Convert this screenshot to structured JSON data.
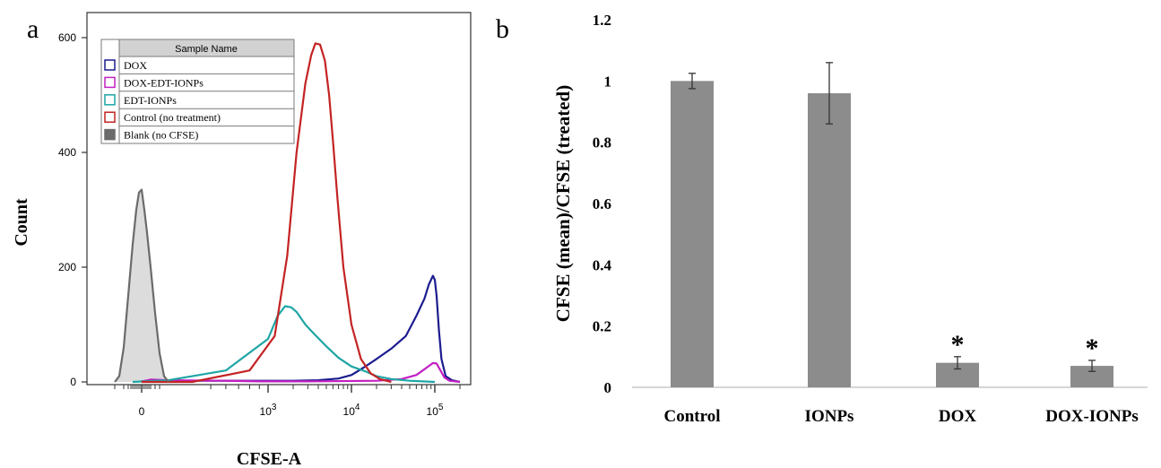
{
  "chart_data": [
    {
      "type": "line",
      "panel_label": "a",
      "xlabel": "CFSE-A",
      "ylabel": "Count",
      "ylim": [
        0,
        620
      ],
      "y_ticks": [
        0,
        200,
        400,
        600
      ],
      "x_tick_labels": [
        {
          "value": "0",
          "base": "",
          "exp": ""
        },
        {
          "value": "1000",
          "base": "10",
          "exp": "3"
        },
        {
          "value": "10000",
          "base": "10",
          "exp": "4"
        },
        {
          "value": "100000",
          "base": "10",
          "exp": "5"
        }
      ],
      "legend": {
        "header": "Sample Name",
        "entries": [
          "DOX",
          "DOX-EDT-IONPs",
          "EDT-IONPs",
          "Control (no treatment)",
          "Blank (no CFSE)"
        ]
      },
      "series": [
        {
          "name": "DOX",
          "color": "#1c1c8f",
          "filled": false,
          "x": [
            0,
            300,
            1000,
            2000,
            4000,
            7000,
            10000,
            14000,
            20000,
            30000,
            45000,
            60000,
            75000,
            85000,
            95000,
            100000,
            105000,
            112000,
            120000,
            135000,
            160000,
            200000
          ],
          "y": [
            1,
            2,
            2,
            2,
            3,
            6,
            12,
            25,
            40,
            58,
            80,
            115,
            145,
            170,
            185,
            178,
            150,
            90,
            40,
            10,
            3,
            0
          ]
        },
        {
          "name": "DOX-EDT-IONPs",
          "color": "#c21fc2",
          "filled": false,
          "x": [
            0,
            100,
            300,
            600,
            900,
            3000,
            20000,
            40000,
            60000,
            80000,
            95000,
            105000,
            115000,
            130000,
            150000,
            200000
          ],
          "y": [
            1,
            4,
            3,
            2,
            1,
            1,
            2,
            5,
            12,
            25,
            33,
            32,
            22,
            8,
            2,
            0
          ]
        },
        {
          "name": "EDT-IONPs",
          "color": "#1fa5a5",
          "filled": false,
          "x": [
            -100,
            300,
            600,
            1000,
            1300,
            1600,
            1900,
            2200,
            2800,
            3500,
            5000,
            7000,
            10000,
            15000,
            20000,
            30000,
            50000,
            100000
          ],
          "y": [
            0,
            3,
            20,
            75,
            115,
            132,
            130,
            122,
            100,
            85,
            62,
            42,
            27,
            18,
            10,
            5,
            2,
            0
          ]
        },
        {
          "name": "Control (no treatment)",
          "color": "#c42323",
          "filled": false,
          "x": [
            0,
            400,
            800,
            1200,
            1700,
            2200,
            2800,
            3300,
            3700,
            4200,
            4800,
            5400,
            6000,
            6800,
            8000,
            10000,
            13000,
            17000,
            22000,
            30000
          ],
          "y": [
            0,
            0,
            20,
            80,
            220,
            400,
            520,
            570,
            590,
            588,
            560,
            500,
            420,
            320,
            200,
            100,
            40,
            15,
            5,
            0
          ]
        },
        {
          "name": "Blank (no CFSE)",
          "color": "#6b6b6b",
          "fill": "#dcdcdc",
          "filled": true,
          "x": [
            -300,
            -250,
            -200,
            -150,
            -100,
            -60,
            -30,
            0,
            30,
            60,
            100,
            150,
            200,
            250,
            300
          ],
          "y": [
            0,
            10,
            60,
            150,
            240,
            300,
            330,
            335,
            300,
            260,
            200,
            120,
            50,
            10,
            0
          ]
        }
      ]
    },
    {
      "type": "bar",
      "panel_label": "b",
      "ylabel": "CFSE (mean)/CFSE (treated)",
      "ylim": [
        0,
        1.2
      ],
      "y_ticks": [
        "0",
        "0.2",
        "0.4",
        "0.6",
        "0.8",
        "1",
        "1.2"
      ],
      "categories": [
        "Control",
        "IONPs",
        "DOX",
        "DOX-IONPs"
      ],
      "values": [
        1.0,
        0.96,
        0.08,
        0.07
      ],
      "errors": [
        0.025,
        0.1,
        0.02,
        0.018
      ],
      "annotations": [
        "",
        "",
        "*",
        "*"
      ],
      "bar_color": "#8c8c8c"
    }
  ]
}
